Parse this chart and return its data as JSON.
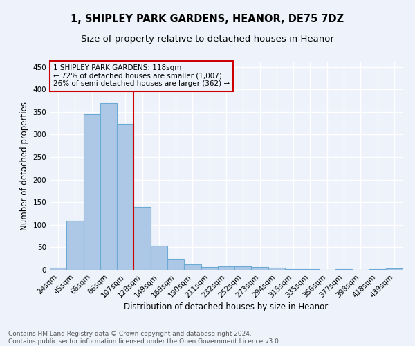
{
  "title1": "1, SHIPLEY PARK GARDENS, HEANOR, DE75 7DZ",
  "title2": "Size of property relative to detached houses in Heanor",
  "xlabel": "Distribution of detached houses by size in Heanor",
  "ylabel": "Number of detached properties",
  "categories": [
    "24sqm",
    "45sqm",
    "66sqm",
    "86sqm",
    "107sqm",
    "128sqm",
    "149sqm",
    "169sqm",
    "190sqm",
    "211sqm",
    "232sqm",
    "252sqm",
    "273sqm",
    "294sqm",
    "315sqm",
    "335sqm",
    "356sqm",
    "377sqm",
    "398sqm",
    "418sqm",
    "439sqm"
  ],
  "values": [
    5,
    109,
    345,
    370,
    323,
    139,
    53,
    25,
    13,
    6,
    8,
    7,
    6,
    4,
    2,
    1,
    0,
    1,
    0,
    1,
    3
  ],
  "bar_color": "#adc8e6",
  "bar_edge_color": "#6aaad4",
  "vline_x": 4.5,
  "vline_color": "#cc0000",
  "annotation_text": "1 SHIPLEY PARK GARDENS: 118sqm\n← 72% of detached houses are smaller (1,007)\n26% of semi-detached houses are larger (362) →",
  "annotation_box_color": "#cc0000",
  "ylim": [
    0,
    460
  ],
  "yticks": [
    0,
    50,
    100,
    150,
    200,
    250,
    300,
    350,
    400,
    450
  ],
  "footer_text": "Contains HM Land Registry data © Crown copyright and database right 2024.\nContains public sector information licensed under the Open Government Licence v3.0.",
  "bg_color": "#eef2fb",
  "grid_color": "#ffffff",
  "title1_fontsize": 10.5,
  "title2_fontsize": 9.5,
  "xlabel_fontsize": 8.5,
  "ylabel_fontsize": 8.5,
  "tick_fontsize": 7.5,
  "annot_fontsize": 7.5,
  "footer_fontsize": 6.5
}
